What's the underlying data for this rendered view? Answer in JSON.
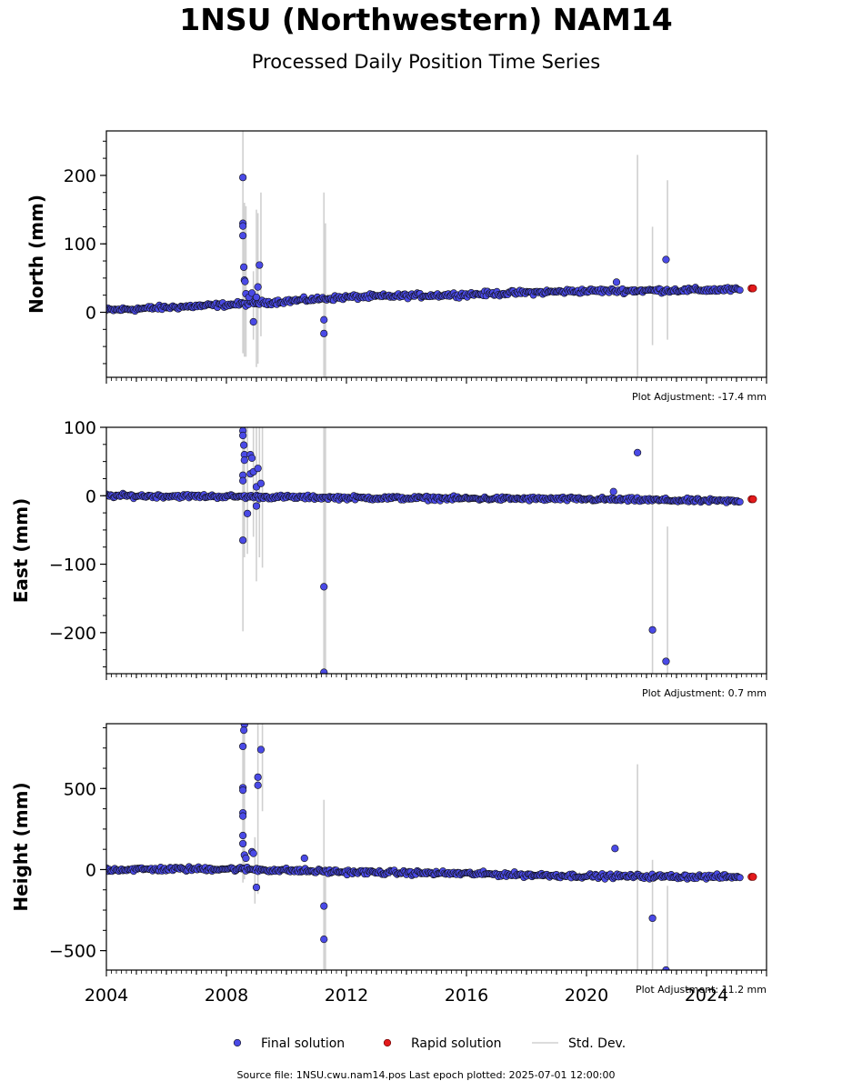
{
  "title": "1NSU (Northwestern) NAM14",
  "subtitle": "Processed Daily Position Time Series",
  "source": "Source file: 1NSU.cwu.nam14.pos  Last epoch plotted: 2025-07-01 12:00:00",
  "colors": {
    "final": "#4a4ae6",
    "rapid": "#e31a1c",
    "stddev": "#d0d0d0",
    "marker_edge": "#101010"
  },
  "legend": {
    "placement": "bottom-center",
    "final_label": "Final solution",
    "rapid_label": "Rapid solution",
    "std_label": "Std. Dev."
  },
  "chart_data": [
    {
      "type": "scatter",
      "ylabel": "North (mm)",
      "adjustment": "Plot Adjustment: -17.4 mm",
      "x_range": [
        2004.0,
        2026.0
      ],
      "ylim": [
        -95,
        265
      ],
      "yticks": [
        0,
        100,
        200
      ],
      "yticklabels": [
        "0",
        "100",
        "200"
      ],
      "trend": [
        [
          2004.0,
          3
        ],
        [
          2008.5,
          12
        ],
        [
          2012.0,
          22
        ],
        [
          2016.0,
          26
        ],
        [
          2019.7,
          31
        ],
        [
          2025.1,
          33
        ]
      ],
      "noise": 3,
      "outliers": [
        [
          2008.55,
          197
        ],
        [
          2008.55,
          130
        ],
        [
          2008.55,
          126
        ],
        [
          2008.55,
          112
        ],
        [
          2008.58,
          66
        ],
        [
          2008.6,
          47
        ],
        [
          2008.62,
          45
        ],
        [
          2008.65,
          27
        ],
        [
          2008.75,
          22
        ],
        [
          2008.85,
          28
        ],
        [
          2008.9,
          -14
        ],
        [
          2009.0,
          22
        ],
        [
          2009.05,
          37
        ],
        [
          2009.1,
          69
        ],
        [
          2011.25,
          -11
        ],
        [
          2011.25,
          -31
        ],
        [
          2021.0,
          44
        ],
        [
          2022.65,
          77
        ]
      ],
      "rapid": [
        [
          2025.5,
          35
        ],
        [
          2025.55,
          35
        ]
      ],
      "stddev_bars": [
        [
          2008.55,
          -60,
          265
        ],
        [
          2008.6,
          -65,
          160
        ],
        [
          2008.65,
          -65,
          155
        ],
        [
          2008.9,
          -40,
          60
        ],
        [
          2009.0,
          -80,
          150
        ],
        [
          2009.05,
          -75,
          145
        ],
        [
          2009.15,
          -35,
          175
        ],
        [
          2011.25,
          -95,
          175
        ],
        [
          2011.3,
          -95,
          130
        ],
        [
          2021.7,
          -95,
          230
        ],
        [
          2022.2,
          -48,
          125
        ],
        [
          2022.7,
          -40,
          193
        ]
      ]
    },
    {
      "type": "scatter",
      "ylabel": "East (mm)",
      "adjustment": "Plot Adjustment: 0.7 mm",
      "x_range": [
        2004.0,
        2026.0
      ],
      "ylim": [
        -260,
        100
      ],
      "yticks": [
        -200,
        -100,
        0,
        100
      ],
      "yticklabels": [
        "−200",
        "−100",
        "0",
        "100"
      ],
      "trend": [
        [
          2004.0,
          0
        ],
        [
          2008.0,
          -1
        ],
        [
          2012.0,
          -3
        ],
        [
          2016.0,
          -4
        ],
        [
          2020.0,
          -5
        ],
        [
          2025.1,
          -8
        ]
      ],
      "noise": 2.5,
      "outliers": [
        [
          2008.55,
          95
        ],
        [
          2008.55,
          88
        ],
        [
          2008.58,
          74
        ],
        [
          2008.6,
          60
        ],
        [
          2008.6,
          52
        ],
        [
          2008.55,
          30
        ],
        [
          2008.55,
          22
        ],
        [
          2008.7,
          -26
        ],
        [
          2008.8,
          60
        ],
        [
          2008.85,
          55
        ],
        [
          2008.8,
          32
        ],
        [
          2008.9,
          35
        ],
        [
          2009.0,
          13
        ],
        [
          2009.05,
          40
        ],
        [
          2009.15,
          18
        ],
        [
          2009.0,
          -15
        ],
        [
          2008.55,
          -65
        ],
        [
          2011.25,
          -133
        ],
        [
          2011.25,
          -258
        ],
        [
          2020.9,
          6
        ],
        [
          2021.7,
          63
        ],
        [
          2022.2,
          -196
        ],
        [
          2022.65,
          -242
        ]
      ],
      "rapid": [
        [
          2025.5,
          -5
        ],
        [
          2025.55,
          -5
        ]
      ],
      "stddev_bars": [
        [
          2008.55,
          -198,
          100
        ],
        [
          2008.6,
          -90,
          100
        ],
        [
          2008.7,
          -85,
          100
        ],
        [
          2008.9,
          -60,
          100
        ],
        [
          2009.0,
          -125,
          100
        ],
        [
          2009.1,
          -90,
          100
        ],
        [
          2009.2,
          -105,
          100
        ],
        [
          2011.25,
          -260,
          100
        ],
        [
          2011.3,
          -260,
          100
        ],
        [
          2022.2,
          -260,
          100
        ],
        [
          2022.7,
          -260,
          -45
        ]
      ]
    },
    {
      "type": "scatter",
      "ylabel": "Height (mm)",
      "adjustment": "Plot Adjustment: 11.2 mm",
      "x_range": [
        2004.0,
        2026.0
      ],
      "ylim": [
        -620,
        900
      ],
      "yticks": [
        -500,
        0,
        500
      ],
      "yticklabels": [
        "−500",
        "0",
        "500"
      ],
      "trend": [
        [
          2004.0,
          0
        ],
        [
          2008.0,
          5
        ],
        [
          2012.0,
          -15
        ],
        [
          2016.0,
          -25
        ],
        [
          2020.0,
          -40
        ],
        [
          2025.1,
          -45
        ]
      ],
      "noise": 12,
      "outliers": [
        [
          2008.6,
          895
        ],
        [
          2008.58,
          860
        ],
        [
          2008.55,
          760
        ],
        [
          2008.55,
          505
        ],
        [
          2008.55,
          490
        ],
        [
          2008.55,
          350
        ],
        [
          2008.55,
          330
        ],
        [
          2008.55,
          210
        ],
        [
          2008.55,
          160
        ],
        [
          2008.6,
          90
        ],
        [
          2008.65,
          70
        ],
        [
          2008.85,
          110
        ],
        [
          2008.9,
          100
        ],
        [
          2009.0,
          -110
        ],
        [
          2009.05,
          520
        ],
        [
          2009.05,
          570
        ],
        [
          2009.15,
          740
        ],
        [
          2010.6,
          70
        ],
        [
          2011.25,
          -225
        ],
        [
          2011.25,
          -430
        ],
        [
          2020.95,
          130
        ],
        [
          2022.2,
          -300
        ],
        [
          2022.65,
          -620
        ]
      ],
      "rapid": [
        [
          2025.5,
          -45
        ],
        [
          2025.55,
          -45
        ]
      ],
      "stddev_bars": [
        [
          2008.55,
          -80,
          900
        ],
        [
          2008.6,
          -60,
          900
        ],
        [
          2008.95,
          -210,
          200
        ],
        [
          2009.05,
          -150,
          900
        ],
        [
          2009.2,
          360,
          900
        ],
        [
          2011.25,
          -620,
          430
        ],
        [
          2011.3,
          -620,
          0
        ],
        [
          2021.7,
          -620,
          650
        ],
        [
          2022.2,
          -620,
          60
        ],
        [
          2022.7,
          -620,
          -100
        ]
      ]
    }
  ],
  "xaxis": {
    "ticks": [
      2004,
      2008,
      2012,
      2016,
      2020,
      2024
    ],
    "ticklabels": [
      "2004",
      "2008",
      "2012",
      "2016",
      "2020",
      "2024"
    ]
  }
}
